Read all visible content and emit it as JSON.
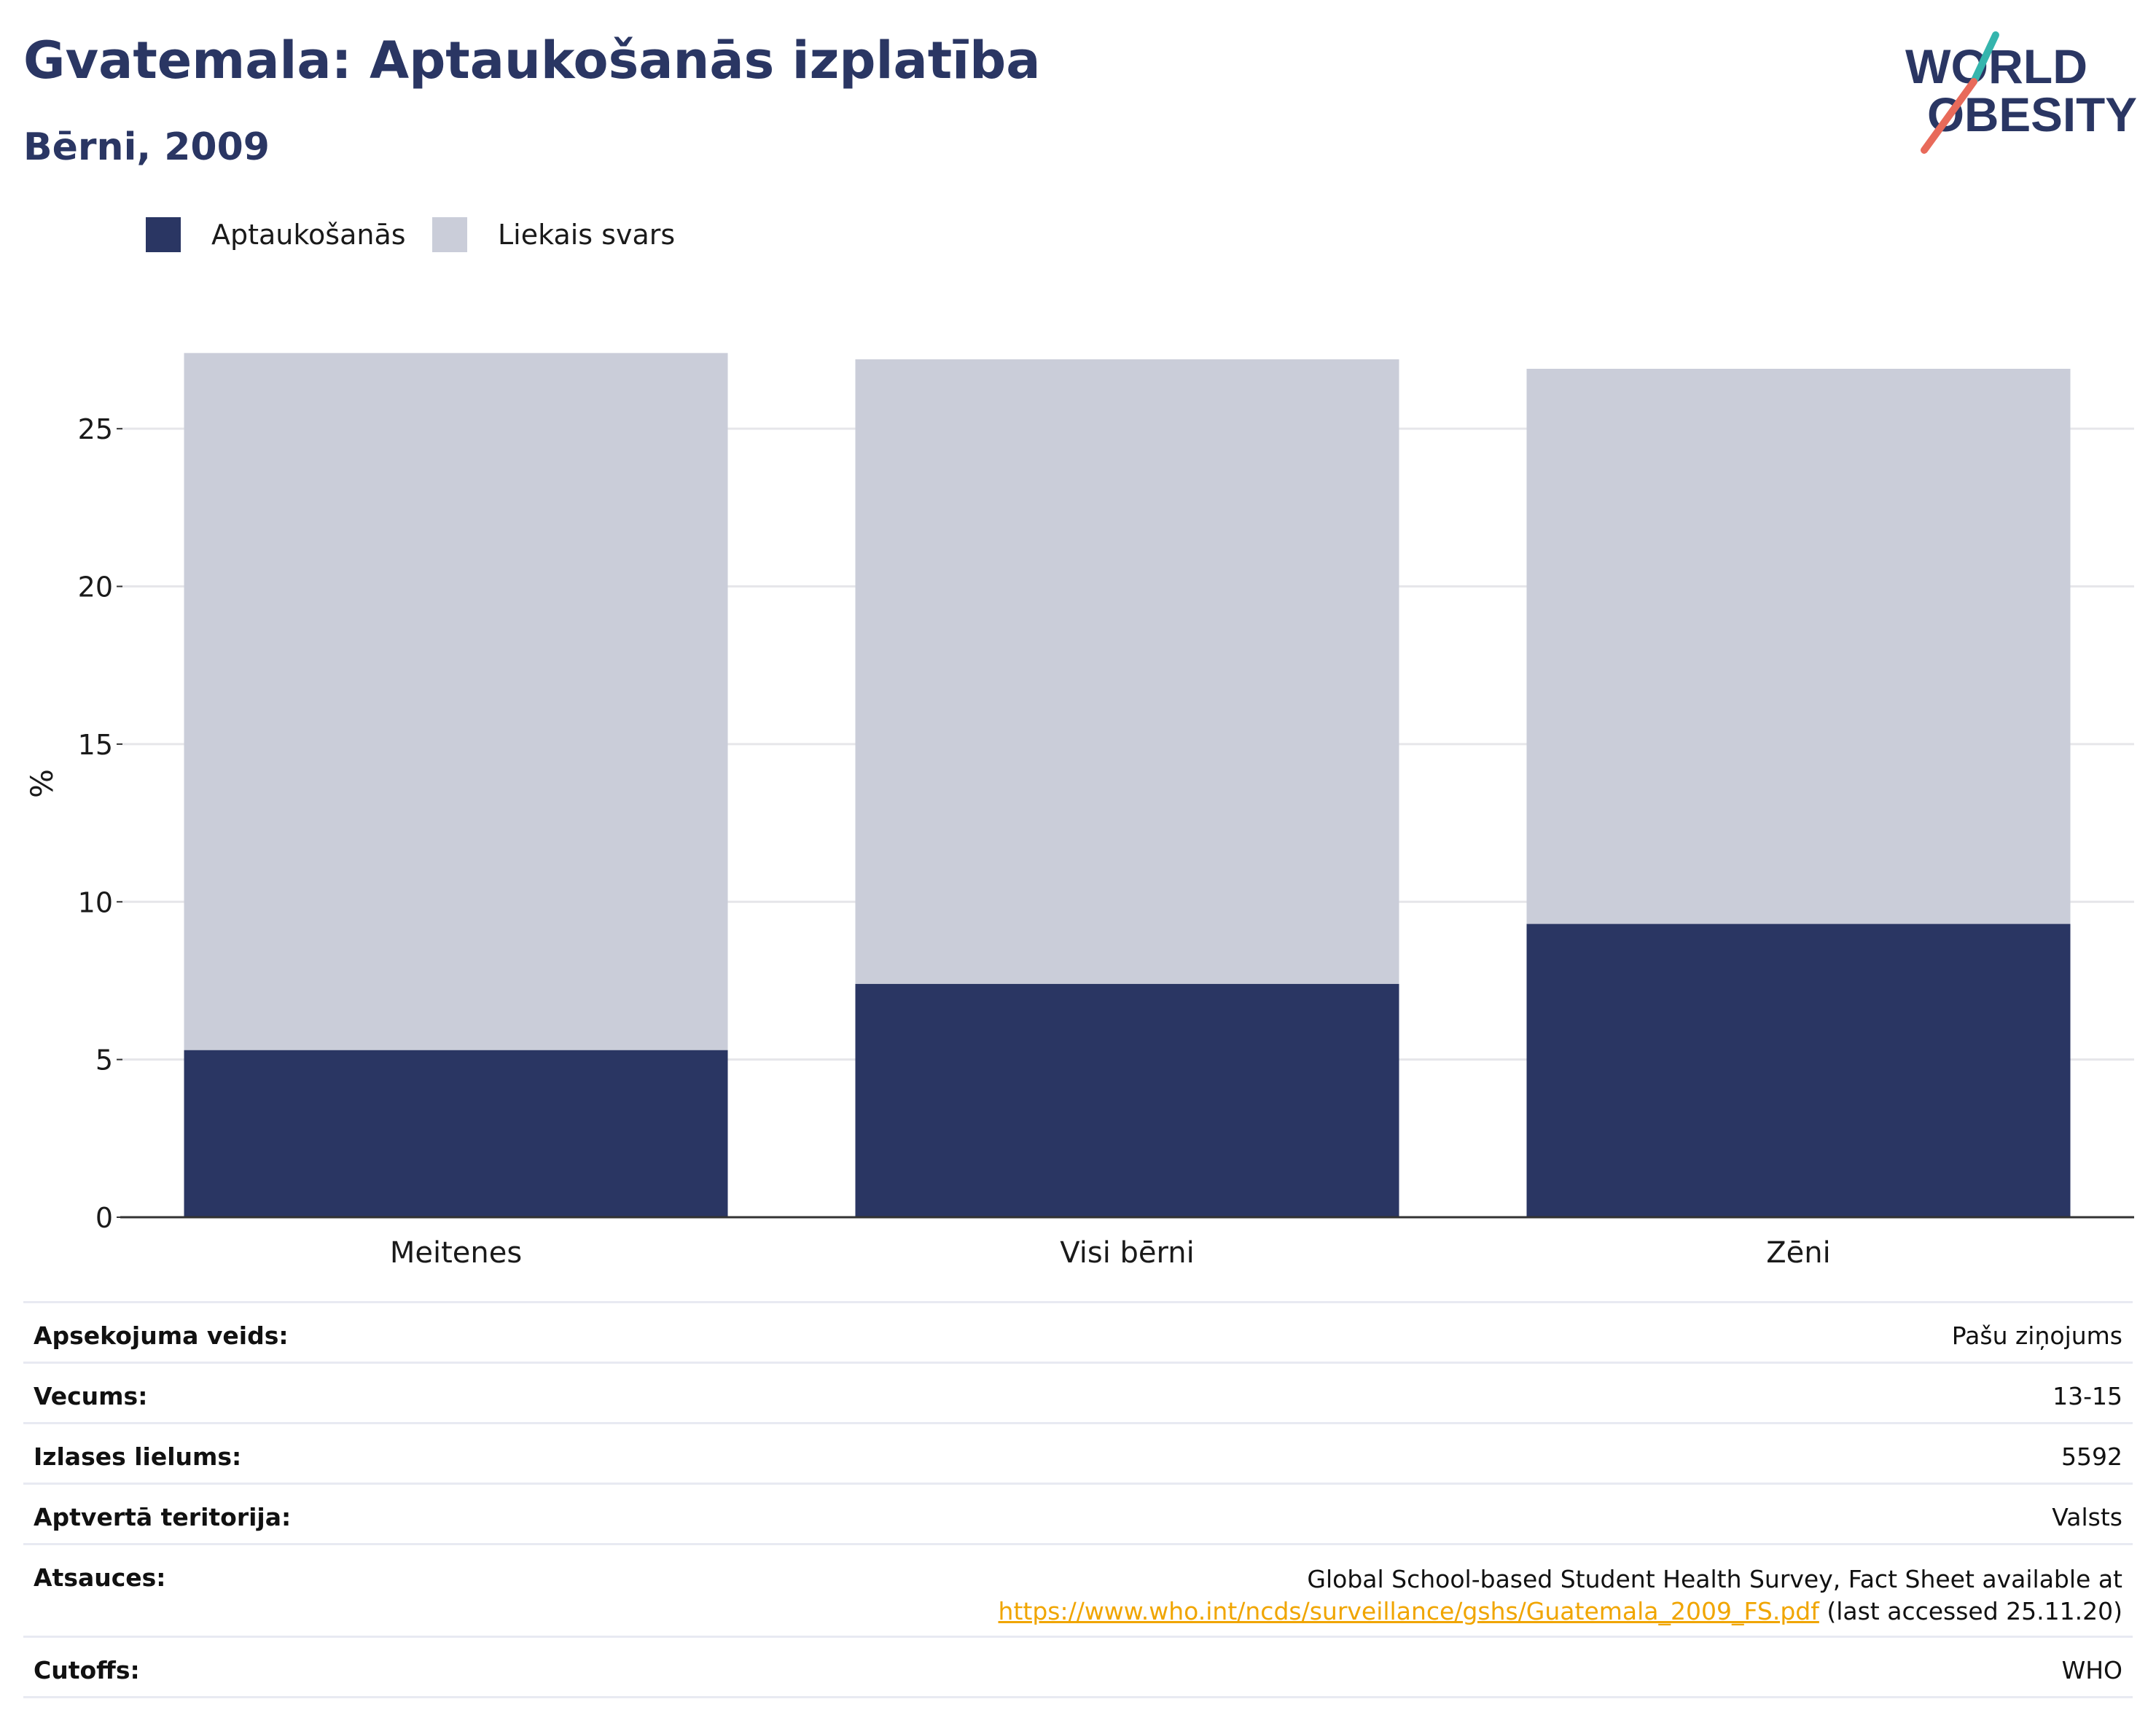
{
  "header": {
    "title": "Gvatemala: Aptaukošanās izplatība",
    "subtitle": "Bērni, 2009"
  },
  "logo": {
    "line1": "WORLD",
    "line2": "OBESITY"
  },
  "colors": {
    "obesity": "#2a3663",
    "overweight": "#cacdd9",
    "brand_navy": "#2a3663",
    "brand_teal": "#35b5ad",
    "brand_coral": "#e86a5a",
    "link": "#f0a500"
  },
  "legend": [
    {
      "label": "Aptaukošanās",
      "color": "#2a3663"
    },
    {
      "label": "Liekais svars",
      "color": "#cacdd9"
    }
  ],
  "chart_data": {
    "type": "bar",
    "stacked": true,
    "categories": [
      "Meitenes",
      "Visi bērni",
      "Zēni"
    ],
    "series": [
      {
        "name": "Aptaukošanās",
        "values": [
          5.3,
          7.4,
          9.3
        ]
      },
      {
        "name": "Liekais svars",
        "values": [
          22.1,
          19.8,
          17.6
        ]
      }
    ],
    "ylabel": "%",
    "ylim": [
      0,
      27.5
    ],
    "yticks": [
      0,
      5,
      10,
      15,
      20,
      25
    ],
    "grid": true,
    "legend_position": "top-left"
  },
  "info": {
    "survey_label": "Apsekojuma veids:",
    "survey_value": "Pašu ziņojums",
    "age_label": "Vecums:",
    "age_value": "13-15",
    "sample_label": "Izlases lielums:",
    "sample_value": "5592",
    "area_label": "Aptvertā teritorija:",
    "area_value": "Valsts",
    "refs_label": "Atsauces:",
    "refs_line1": "Global School-based Student Health Survey, Fact Sheet available at",
    "refs_link": "https://www.who.int/ncds/surveillance/gshs/Guatemala_2009_FS.pdf",
    "refs_suffix": " (last accessed 25.11.20)",
    "cutoffs_label": "Cutoffs:",
    "cutoffs_value": "WHO"
  }
}
